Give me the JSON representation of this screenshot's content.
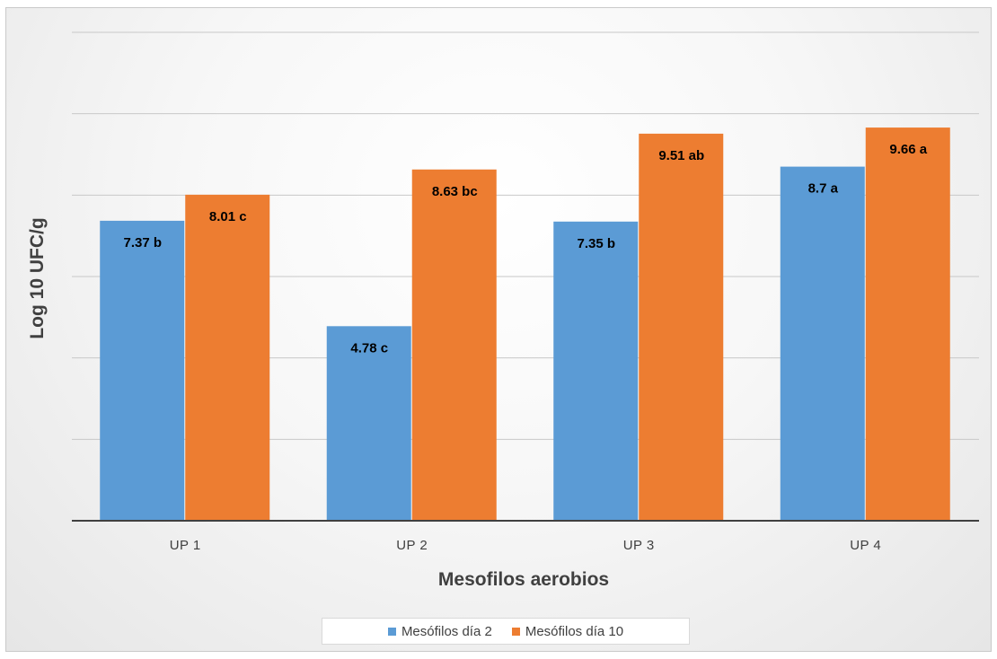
{
  "chart_data": {
    "type": "bar",
    "xlabel": "Mesofilos aerobios",
    "ylabel": "Log 10 UFC/g",
    "categories": [
      "UP 1",
      "UP 2",
      "UP 3",
      "UP 4"
    ],
    "ylim": [
      0,
      12
    ],
    "grid": true,
    "legend_position": "bottom",
    "series": [
      {
        "name": "Mesófilos día 2",
        "color": "#5B9BD5",
        "values": [
          7.37,
          4.78,
          7.35,
          8.7
        ],
        "labels": [
          "7.37 b",
          "4.78 c",
          "7.35 b",
          "8.7 a"
        ]
      },
      {
        "name": "Mesófilos día 10",
        "color": "#ED7D31",
        "values": [
          8.01,
          8.63,
          9.51,
          9.66
        ],
        "labels": [
          "8.01 c",
          "8.63 bc",
          "9.51 ab",
          "9.66 a"
        ]
      }
    ]
  }
}
